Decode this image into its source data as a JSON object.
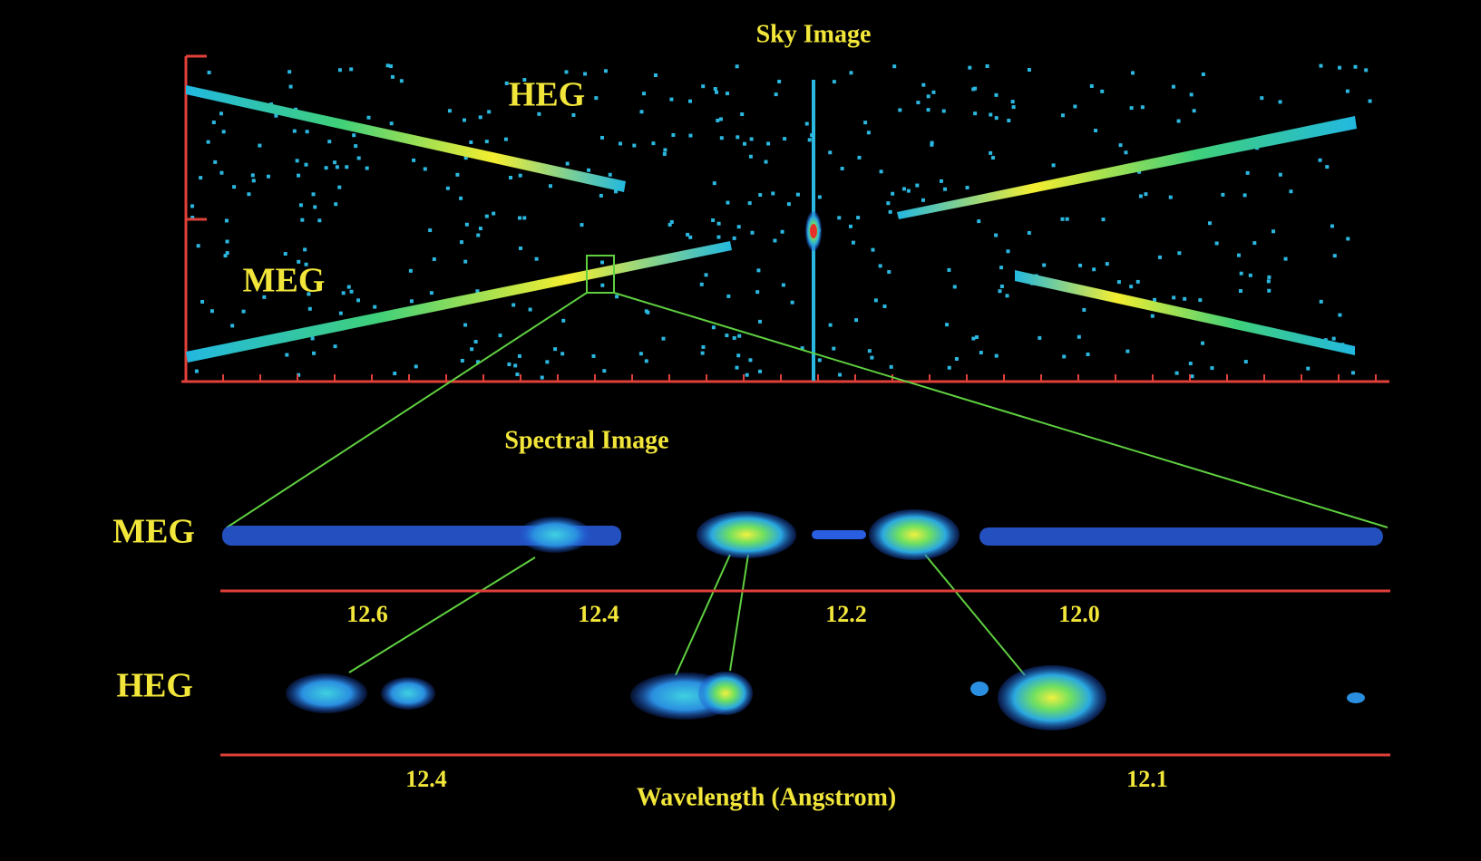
{
  "sky_image": {
    "title": "Sky Image",
    "heg_label": "HEG",
    "meg_label": "MEG"
  },
  "spectral_image": {
    "title": "Spectral Image",
    "meg": {
      "label": "MEG",
      "ticks": [
        "12.6",
        "12.4",
        "12.2",
        "12.0"
      ]
    },
    "heg": {
      "label": "HEG",
      "ticks": [
        "12.4",
        "12.1"
      ]
    },
    "axis_label": "Wavelength (Angstrom)"
  }
}
